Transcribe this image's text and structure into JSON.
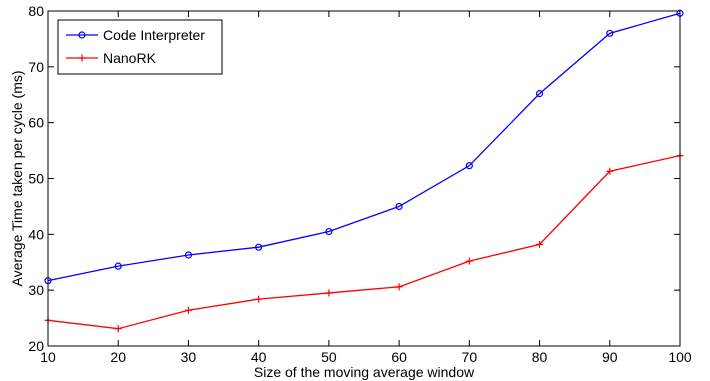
{
  "chart_data": {
    "type": "line",
    "x": [
      10,
      20,
      30,
      40,
      50,
      60,
      70,
      80,
      90,
      100
    ],
    "series": [
      {
        "name": "Code Interpreter",
        "color": "#0000ff",
        "marker": "circle",
        "values": [
          31.7,
          34.3,
          36.3,
          37.7,
          40.5,
          45.0,
          52.3,
          65.2,
          76.0,
          79.6
        ]
      },
      {
        "name": "NanoRK",
        "color": "#ff0000",
        "marker": "plus",
        "values": [
          24.6,
          23.1,
          26.4,
          28.4,
          29.5,
          30.6,
          35.2,
          38.2,
          51.3,
          54.1
        ]
      }
    ],
    "xlabel": "Size of the moving average window",
    "ylabel": "Average Time taken per cycle (ms)",
    "xlim": [
      10,
      100
    ],
    "ylim": [
      20,
      80
    ],
    "xticks": [
      "10",
      "20",
      "30",
      "40",
      "50",
      "60",
      "70",
      "80",
      "90",
      "100"
    ],
    "yticks": [
      "20",
      "30",
      "40",
      "50",
      "60",
      "70",
      "80"
    ],
    "grid": false,
    "legend_position": "top-left"
  }
}
